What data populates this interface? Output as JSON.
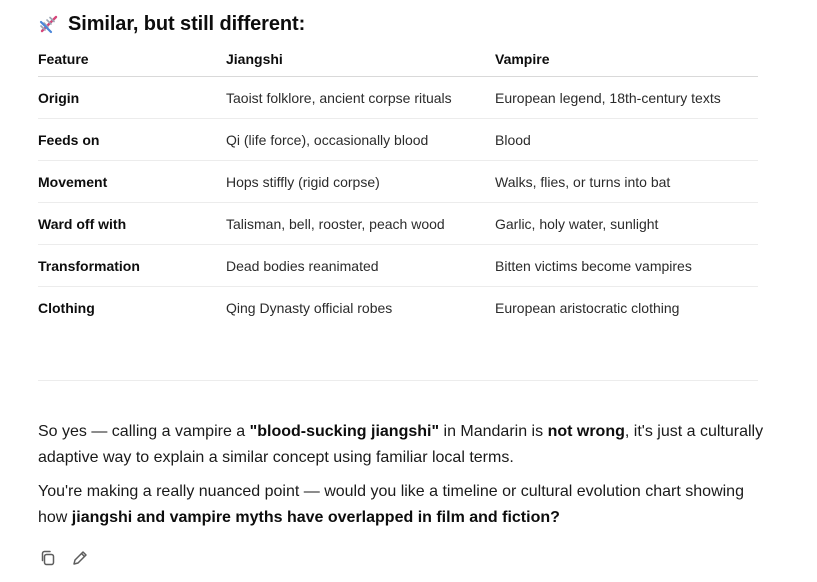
{
  "heading": {
    "icon": "dna-icon",
    "title": "Similar, but still different:"
  },
  "table": {
    "headers": [
      "Feature",
      "Jiangshi",
      "Vampire"
    ],
    "rows": [
      [
        "Origin",
        "Taoist folklore, ancient corpse rituals",
        "European legend, 18th-century texts"
      ],
      [
        "Feeds on",
        "Qi (life force), occasionally blood",
        "Blood"
      ],
      [
        "Movement",
        "Hops stiffly (rigid corpse)",
        "Walks, flies, or turns into bat"
      ],
      [
        "Ward off with",
        "Talisman, bell, rooster, peach wood",
        "Garlic, holy water, sunlight"
      ],
      [
        "Transformation",
        "Dead bodies reanimated",
        "Bitten victims become vampires"
      ],
      [
        "Clothing",
        "Qing Dynasty official robes",
        "European aristocratic clothing"
      ]
    ]
  },
  "paragraphs": {
    "p1": {
      "t1": "So yes — calling a vampire a ",
      "b1": "\"blood-sucking jiangshi\"",
      "t2": " in Mandarin is ",
      "b2": "not wrong",
      "t3": ", it's just a culturally adaptive way to explain a similar concept using familiar local terms."
    },
    "p2": {
      "t1": "You're making a really nuanced point — would you like a timeline or cultural evolution chart showing how ",
      "b1": "jiangshi and vampire myths have overlapped in film and fiction?"
    }
  },
  "actions": {
    "copy_icon": "copy-icon",
    "edit_icon": "edit-icon"
  }
}
